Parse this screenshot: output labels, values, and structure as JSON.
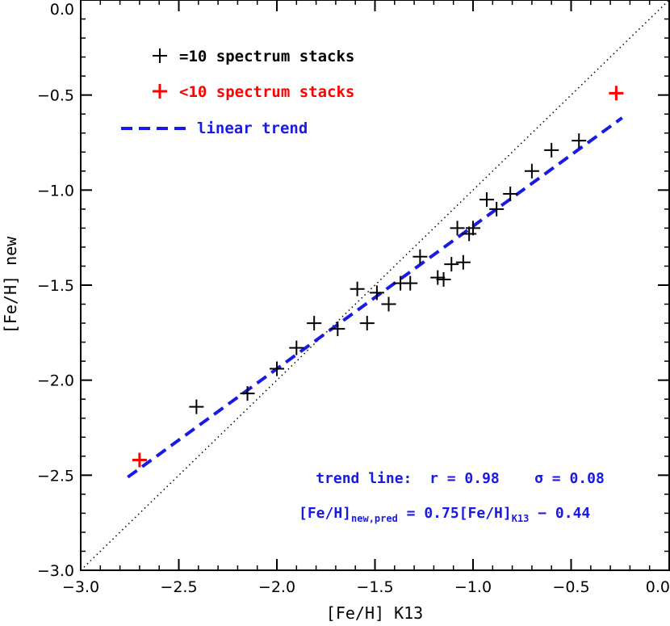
{
  "chart_data": {
    "type": "scatter",
    "xlabel": "[Fe/H] K13",
    "ylabel": "[Fe/H] new",
    "xlim": [
      -3.0,
      0.0
    ],
    "ylim": [
      -3.0,
      0.0
    ],
    "x_ticks": [
      -3.0,
      -2.5,
      -2.0,
      -1.5,
      -1.0,
      -0.5,
      0.0
    ],
    "y_ticks": [
      -3.0,
      -2.5,
      -2.0,
      -1.5,
      -1.0,
      -0.5,
      0.0
    ],
    "x_tick_labels": [
      "−3.0",
      "−2.5",
      "−2.0",
      "−1.5",
      "−1.0",
      "−0.5",
      "0.0"
    ],
    "y_tick_labels": [
      "−3.0",
      "−2.5",
      "−2.0",
      "−1.5",
      "−1.0",
      "−0.5",
      "0.0"
    ],
    "grid": false,
    "legend_position": "top-left",
    "series": [
      {
        "name": "=10 spectrum stacks",
        "marker": "plus",
        "color": "#000000",
        "points": [
          [
            -2.41,
            -2.14
          ],
          [
            -2.15,
            -2.07
          ],
          [
            -2.0,
            -1.94
          ],
          [
            -1.9,
            -1.83
          ],
          [
            -1.81,
            -1.7
          ],
          [
            -1.69,
            -1.73
          ],
          [
            -1.59,
            -1.52
          ],
          [
            -1.54,
            -1.7
          ],
          [
            -1.49,
            -1.54
          ],
          [
            -1.43,
            -1.6
          ],
          [
            -1.37,
            -1.49
          ],
          [
            -1.32,
            -1.49
          ],
          [
            -1.27,
            -1.35
          ],
          [
            -1.18,
            -1.46
          ],
          [
            -1.15,
            -1.47
          ],
          [
            -1.11,
            -1.39
          ],
          [
            -1.08,
            -1.2
          ],
          [
            -1.05,
            -1.38
          ],
          [
            -1.02,
            -1.23
          ],
          [
            -1.0,
            -1.2
          ],
          [
            -0.93,
            -1.05
          ],
          [
            -0.88,
            -1.1
          ],
          [
            -0.81,
            -1.02
          ],
          [
            -0.7,
            -0.9
          ],
          [
            -0.6,
            -0.79
          ],
          [
            -0.46,
            -0.74
          ]
        ]
      },
      {
        "name": "<10 spectrum stacks",
        "marker": "plus",
        "color": "#ff0000",
        "points": [
          [
            -2.7,
            -2.42
          ],
          [
            -0.27,
            -0.49
          ]
        ]
      }
    ],
    "trend": {
      "name": "linear trend",
      "color": "#1a1ae6",
      "style": "dashed",
      "slope": 0.75,
      "intercept": -0.44,
      "x_range": [
        -2.76,
        -0.24
      ]
    },
    "identity_line": {
      "style": "dotted",
      "color": "#000000"
    },
    "annotations": {
      "stats_line": "trend line:  r = 0.98    σ = 0.08",
      "eq_lhs": "[Fe/H]",
      "eq_lhs_sub": "new,pred",
      "eq_mid": " = 0.75[Fe/H]",
      "eq_mid_sub": "K13",
      "eq_rhs": " − 0.44"
    }
  }
}
